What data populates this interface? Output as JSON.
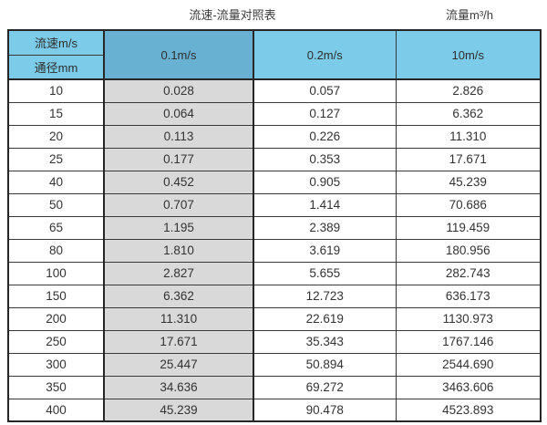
{
  "titles": {
    "left": "流速-流量对照表",
    "right": "流量m³/h"
  },
  "chart_data": {
    "type": "table",
    "title": "流速-流量对照表",
    "flow_unit_label": "流量m³/h",
    "row_header_top": "流速m/s",
    "row_header_bottom": "通径mm",
    "velocity_columns": [
      "0.1m/s",
      "0.2m/s",
      "10m/s"
    ],
    "highlighted_column": "0.1m/s",
    "rows": [
      [
        "10",
        "0.028",
        "0.057",
        "2.826"
      ],
      [
        "15",
        "0.064",
        "0.127",
        "6.362"
      ],
      [
        "20",
        "0.113",
        "0.226",
        "11.310"
      ],
      [
        "25",
        "0.177",
        "0.353",
        "17.671"
      ],
      [
        "40",
        "0.452",
        "0.905",
        "45.239"
      ],
      [
        "50",
        "0.707",
        "1.414",
        "70.686"
      ],
      [
        "65",
        "1.195",
        "2.389",
        "119.459"
      ],
      [
        "80",
        "1.810",
        "3.619",
        "180.956"
      ],
      [
        "100",
        "2.827",
        "5.655",
        "282.743"
      ],
      [
        "150",
        "6.362",
        "12.723",
        "636.173"
      ],
      [
        "200",
        "11.310",
        "22.619",
        "1130.973"
      ],
      [
        "250",
        "17.671",
        "35.343",
        "1767.146"
      ],
      [
        "300",
        "25.447",
        "50.894",
        "2544.690"
      ],
      [
        "350",
        "34.636",
        "69.272",
        "3463.606"
      ],
      [
        "400",
        "45.239",
        "90.478",
        "4523.893"
      ]
    ]
  },
  "colors": {
    "header_light_blue": "#7CCBE8",
    "header_dark_blue": "#69B1D2",
    "highlight_column_gray": "#D9D9D9",
    "border": "#3a3a3a",
    "outer_border": "#262626",
    "text": "#333333"
  }
}
